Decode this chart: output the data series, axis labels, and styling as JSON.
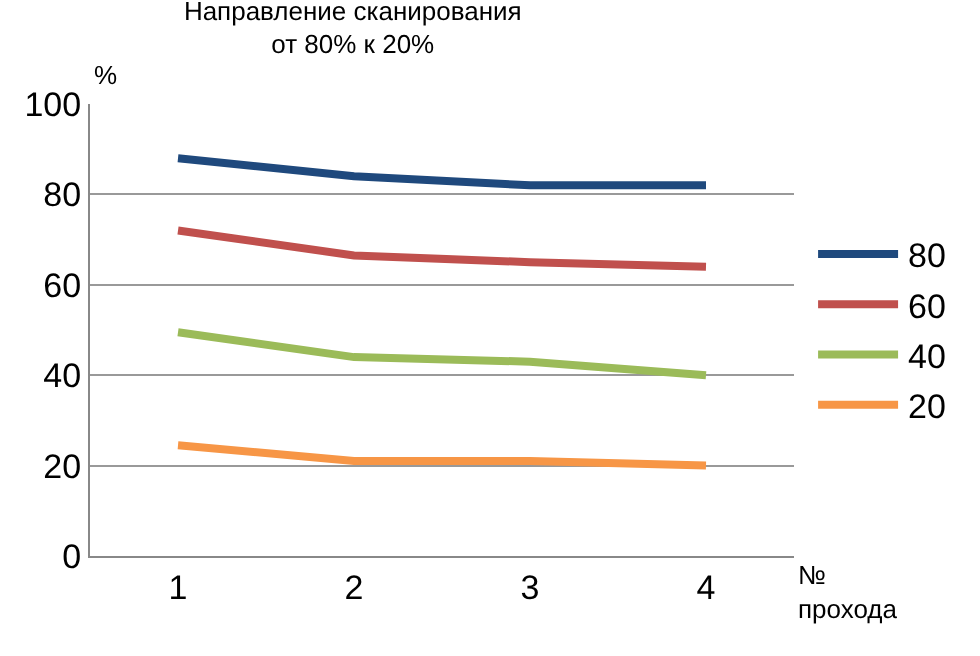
{
  "chart_data": {
    "type": "line",
    "title": "Направление сканирования\nот 80% к 20%",
    "xlabel": "№\nпрохода",
    "ylabel": "%",
    "categories": [
      "1",
      "2",
      "3",
      "4"
    ],
    "series": [
      {
        "name": "80",
        "color": "#1f497d",
        "values": [
          88,
          84,
          82,
          82
        ]
      },
      {
        "name": "60",
        "color": "#c0504d",
        "values": [
          72,
          66.5,
          65,
          64
        ]
      },
      {
        "name": "40",
        "color": "#9bbb59",
        "values": [
          49.5,
          44,
          43,
          40
        ]
      },
      {
        "name": "20",
        "color": "#f79646",
        "values": [
          24.5,
          21,
          21,
          20
        ]
      }
    ],
    "ylim": [
      0,
      100
    ],
    "yticks": [
      0,
      20,
      40,
      60,
      80,
      100
    ],
    "grid": "y",
    "legend": "right",
    "marker": "none",
    "line_style": "solid"
  }
}
